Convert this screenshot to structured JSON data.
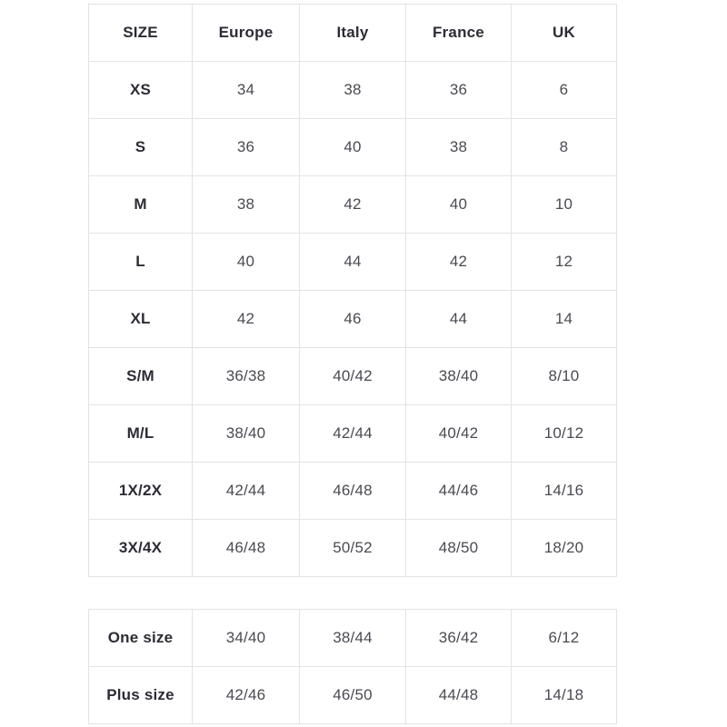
{
  "colors": {
    "background": "#ffffff",
    "border": "#e3e3e3",
    "header_text": "#2c2c35",
    "cell_text": "#4a4a52"
  },
  "chart_data": [
    {
      "type": "table",
      "name": "size-conversion-table",
      "columns": [
        "SIZE",
        "Europe",
        "Italy",
        "France",
        "UK"
      ],
      "rows": [
        [
          "XS",
          "34",
          "38",
          "36",
          "6"
        ],
        [
          "S",
          "36",
          "40",
          "38",
          "8"
        ],
        [
          "M",
          "38",
          "42",
          "40",
          "10"
        ],
        [
          "L",
          "40",
          "44",
          "42",
          "12"
        ],
        [
          "XL",
          "42",
          "46",
          "44",
          "14"
        ],
        [
          "S/M",
          "36/38",
          "40/42",
          "38/40",
          "8/10"
        ],
        [
          "M/L",
          "38/40",
          "42/44",
          "40/42",
          "10/12"
        ],
        [
          "1X/2X",
          "42/44",
          "46/48",
          "44/46",
          "14/16"
        ],
        [
          "3X/4X",
          "46/48",
          "50/52",
          "48/50",
          "18/20"
        ]
      ],
      "layout": {
        "grid": true,
        "header_row": true,
        "bold_first_column": true
      }
    },
    {
      "type": "table",
      "name": "special-sizes-table",
      "columns": [],
      "rows": [
        [
          "One size",
          "34/40",
          "38/44",
          "36/42",
          "6/12"
        ],
        [
          "Plus size",
          "42/46",
          "46/50",
          "44/48",
          "14/18"
        ]
      ],
      "layout": {
        "grid": true,
        "header_row": false,
        "bold_first_column": true
      }
    }
  ]
}
